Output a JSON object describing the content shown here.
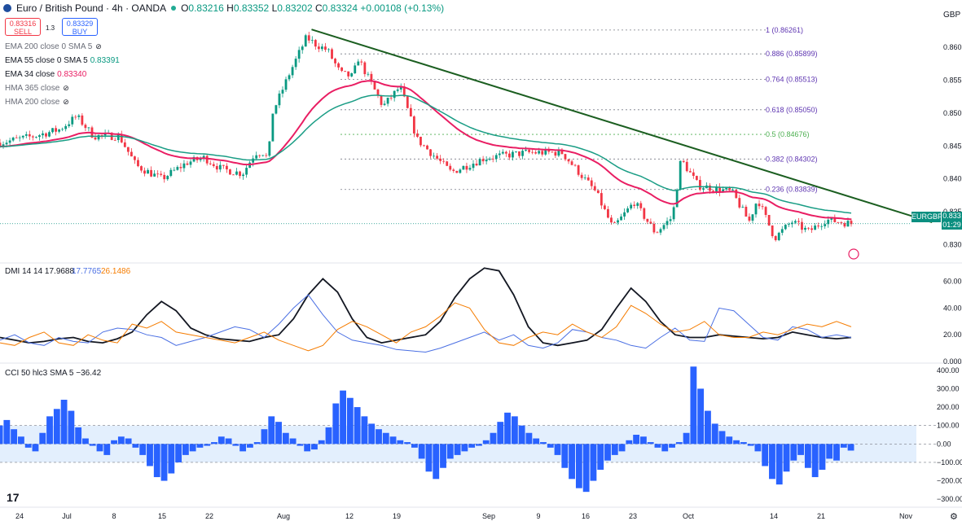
{
  "header": {
    "symbol": "Euro / British Pound · 4h · OANDA",
    "open": "0.83216",
    "high": "0.83352",
    "low": "0.83202",
    "close": "0.83324",
    "change": "+0.00108 (+0.13%)",
    "sell_price": "0.83316",
    "sell_label": "SELL",
    "buy_price": "0.83329",
    "buy_label": "BUY",
    "spread": "1.3",
    "currency": "GBP"
  },
  "indicators": [
    {
      "label": "EMA 200 close 0 SMA 5",
      "value": "",
      "hidden": true,
      "color": "#9598a1"
    },
    {
      "label": "EMA 55 close 0 SMA 5",
      "value": "0.83391",
      "hidden": false,
      "color": "#089981"
    },
    {
      "label": "EMA 34 close",
      "value": "0.83340",
      "hidden": false,
      "color": "#e91e63"
    },
    {
      "label": "HMA 365 close",
      "value": "",
      "hidden": true,
      "color": "#9598a1"
    },
    {
      "label": "HMA 200 close",
      "value": "",
      "hidden": true,
      "color": "#9598a1"
    }
  ],
  "fib": [
    {
      "ratio": "1",
      "label": "1 (0.86261)",
      "price": 0.86261
    },
    {
      "ratio": "0.886",
      "label": "0.886 (0.85899)",
      "price": 0.85899
    },
    {
      "ratio": "0.764",
      "label": "0.764 (0.85513)",
      "price": 0.85513
    },
    {
      "ratio": "0.618",
      "label": "0.618 (0.85050)",
      "price": 0.8505
    },
    {
      "ratio": "0.5",
      "label": "0.5 (0.84676)",
      "price": 0.84676
    },
    {
      "ratio": "0.382",
      "label": "0.382 (0.84302)",
      "price": 0.84302
    },
    {
      "ratio": "0.236",
      "label": "0.236 (0.83839)",
      "price": 0.83839
    }
  ],
  "price_tag": {
    "symbol": "EURGBP",
    "price": "0.833",
    "countdown": "01:29"
  },
  "dmi_legend": {
    "label": "DMI 14 14",
    "adx": "17.9688",
    "plus": "17.7765",
    "minus": "26.1486"
  },
  "cci_legend": {
    "label": "CCI 50 hlc3 SMA 5",
    "value": "−36.42"
  },
  "colors": {
    "up": "#089981",
    "down": "#f23645",
    "ema34": "#e91e63",
    "ema55": "#1a9d85",
    "trend": "#1b5e20",
    "adx": "#131722",
    "plus": "#4a6fe3",
    "minus": "#f57c00",
    "cci": "#2962ff"
  },
  "chart_data": [
    {
      "type": "candlestick",
      "title": "Euro / British Pound · 4h · OANDA",
      "x_ticks": [
        "24",
        "Jul",
        "8",
        "15",
        "22",
        "Aug",
        "12",
        "19",
        "Sep",
        "9",
        "16",
        "23",
        "Oct",
        "14",
        "21",
        "Nov"
      ],
      "y_ticks": [
        "0.860",
        "0.855",
        "0.850",
        "0.845",
        "0.840",
        "0.835",
        "0.830"
      ],
      "ylim": [
        0.8276,
        0.8647
      ],
      "anchors": [
        {
          "t": 0,
          "p": 0.8455
        },
        {
          "t": 0.04,
          "p": 0.8465
        },
        {
          "t": 0.07,
          "p": 0.8475
        },
        {
          "t": 0.09,
          "p": 0.8495
        },
        {
          "t": 0.11,
          "p": 0.8465
        },
        {
          "t": 0.14,
          "p": 0.8465
        },
        {
          "t": 0.16,
          "p": 0.842
        },
        {
          "t": 0.19,
          "p": 0.84
        },
        {
          "t": 0.22,
          "p": 0.8425
        },
        {
          "t": 0.24,
          "p": 0.8432
        },
        {
          "t": 0.26,
          "p": 0.8415
        },
        {
          "t": 0.285,
          "p": 0.8408
        },
        {
          "t": 0.3,
          "p": 0.844
        },
        {
          "t": 0.31,
          "p": 0.844
        },
        {
          "t": 0.315,
          "p": 0.8428
        },
        {
          "t": 0.32,
          "p": 0.85
        },
        {
          "t": 0.34,
          "p": 0.856
        },
        {
          "t": 0.36,
          "p": 0.8615
        },
        {
          "t": 0.37,
          "p": 0.8605
        },
        {
          "t": 0.385,
          "p": 0.8595
        },
        {
          "t": 0.4,
          "p": 0.856
        },
        {
          "t": 0.415,
          "p": 0.8555
        },
        {
          "t": 0.42,
          "p": 0.8585
        },
        {
          "t": 0.45,
          "p": 0.851
        },
        {
          "t": 0.47,
          "p": 0.854
        },
        {
          "t": 0.49,
          "p": 0.846
        },
        {
          "t": 0.53,
          "p": 0.841
        },
        {
          "t": 0.57,
          "p": 0.8432
        },
        {
          "t": 0.62,
          "p": 0.844
        },
        {
          "t": 0.66,
          "p": 0.844
        },
        {
          "t": 0.68,
          "p": 0.841
        },
        {
          "t": 0.7,
          "p": 0.838
        },
        {
          "t": 0.72,
          "p": 0.8325
        },
        {
          "t": 0.745,
          "p": 0.8365
        },
        {
          "t": 0.77,
          "p": 0.8318
        },
        {
          "t": 0.79,
          "p": 0.8342
        },
        {
          "t": 0.8,
          "p": 0.843
        },
        {
          "t": 0.82,
          "p": 0.839
        },
        {
          "t": 0.86,
          "p": 0.838
        },
        {
          "t": 0.88,
          "p": 0.8335
        },
        {
          "t": 0.89,
          "p": 0.837
        },
        {
          "t": 0.91,
          "p": 0.831
        },
        {
          "t": 0.93,
          "p": 0.8335
        },
        {
          "t": 0.95,
          "p": 0.832
        },
        {
          "t": 0.97,
          "p": 0.8338
        },
        {
          "t": 1.0,
          "p": 0.8332
        }
      ],
      "candle_count": 260,
      "trendline": {
        "from": {
          "t": 0.366,
          "p": 0.8627
        },
        "to": {
          "t": 1.095,
          "p": 0.8334
        }
      }
    },
    {
      "type": "line",
      "title": "DMI 14 14",
      "y_ticks": [
        "60.00",
        "40.00",
        "20.00",
        "0.000"
      ],
      "ylim": [
        0,
        72
      ],
      "series": [
        {
          "name": "ADX",
          "values": [
            18,
            16,
            14,
            15,
            17,
            18,
            15,
            14,
            17,
            22,
            35,
            45,
            38,
            25,
            20,
            17,
            16,
            15,
            18,
            20,
            32,
            50,
            62,
            52,
            32,
            18,
            14,
            16,
            18,
            20,
            30,
            48,
            62,
            70,
            68,
            50,
            26,
            14,
            12,
            14,
            16,
            24,
            40,
            55,
            45,
            30,
            20,
            18,
            18,
            20,
            19,
            18,
            17,
            18,
            22,
            20,
            18,
            17,
            18
          ]
        },
        {
          "name": "+DI",
          "values": [
            16,
            20,
            14,
            12,
            18,
            15,
            14,
            22,
            25,
            24,
            20,
            18,
            12,
            15,
            18,
            22,
            26,
            24,
            18,
            28,
            40,
            50,
            35,
            22,
            16,
            14,
            12,
            9,
            8,
            7,
            10,
            14,
            18,
            22,
            16,
            20,
            12,
            10,
            14,
            24,
            22,
            18,
            16,
            12,
            10,
            18,
            25,
            16,
            15,
            40,
            38,
            28,
            18,
            16,
            26,
            24,
            18,
            20,
            18
          ]
        },
        {
          "name": "−DI",
          "values": [
            14,
            12,
            18,
            22,
            14,
            12,
            20,
            16,
            14,
            28,
            25,
            30,
            22,
            20,
            18,
            16,
            14,
            18,
            22,
            16,
            12,
            8,
            12,
            24,
            30,
            26,
            20,
            14,
            22,
            26,
            34,
            44,
            40,
            24,
            14,
            12,
            18,
            22,
            20,
            28,
            22,
            18,
            26,
            42,
            36,
            28,
            22,
            24,
            30,
            20,
            18,
            18,
            22,
            20,
            24,
            28,
            26,
            30,
            26
          ]
        }
      ]
    },
    {
      "type": "bar",
      "title": "CCI 50 hlc3 SMA 5",
      "y_ticks": [
        "400.00",
        "300.00",
        "200.00",
        "100.00",
        "0.00",
        "−100.00",
        "−200.00",
        "−300.00"
      ],
      "ylim": [
        -330,
        430
      ],
      "values": [
        100,
        130,
        80,
        40,
        -20,
        -40,
        60,
        150,
        190,
        240,
        180,
        90,
        30,
        -10,
        -40,
        -60,
        20,
        40,
        30,
        -20,
        -60,
        -120,
        -180,
        -200,
        -160,
        -100,
        -60,
        -40,
        -20,
        -10,
        10,
        40,
        30,
        -10,
        -40,
        -20,
        10,
        80,
        150,
        120,
        60,
        30,
        -10,
        -40,
        -30,
        20,
        90,
        220,
        290,
        250,
        200,
        150,
        110,
        80,
        60,
        40,
        20,
        10,
        -20,
        -80,
        -150,
        -190,
        -130,
        -80,
        -60,
        -40,
        -20,
        -10,
        20,
        60,
        120,
        170,
        150,
        100,
        60,
        30,
        10,
        -20,
        -60,
        -130,
        -190,
        -240,
        -260,
        -200,
        -140,
        -90,
        -60,
        -40,
        20,
        50,
        40,
        10,
        -20,
        -40,
        -20,
        10,
        60,
        420,
        300,
        180,
        110,
        70,
        40,
        20,
        10,
        -10,
        -40,
        -120,
        -190,
        -220,
        -150,
        -90,
        -60,
        -130,
        -180,
        -140,
        -80,
        -90,
        -20,
        -36
      ]
    }
  ]
}
